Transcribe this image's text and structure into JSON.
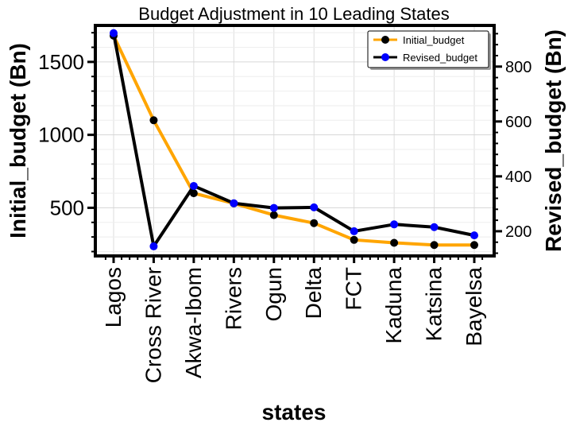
{
  "chart_data": {
    "type": "line",
    "title": "Budget Adjustment in 10 Leading States",
    "xlabel": "states",
    "ylabel_left": "Initial_budget (Bn)",
    "ylabel_right": "Revised_budget (Bn)",
    "categories": [
      "Lagos",
      "Cross River",
      "Akwa-Ibom",
      "Rivers",
      "Ogun",
      "Delta",
      "FCT",
      "Kaduna",
      "Katsina",
      "Bayelsa"
    ],
    "y_left_ticks": [
      500,
      1000,
      1500
    ],
    "y_left_range": [
      170,
      1750
    ],
    "y_right_ticks": [
      200,
      400,
      600,
      800
    ],
    "y_right_range": [
      110,
      950
    ],
    "grid": true,
    "legend_position": "top-right",
    "series": [
      {
        "name": "Initial_budget",
        "axis": "left",
        "line_color": "#FFA500",
        "marker_color": "#000000",
        "values": [
          1680,
          1100,
          600,
          530,
          450,
          395,
          280,
          260,
          245,
          245
        ]
      },
      {
        "name": "Revised_budget",
        "axis": "right",
        "line_color": "#000000",
        "marker_color": "#0000FF",
        "values": [
          922,
          145,
          365,
          302,
          285,
          287,
          200,
          225,
          215,
          185
        ]
      }
    ]
  }
}
